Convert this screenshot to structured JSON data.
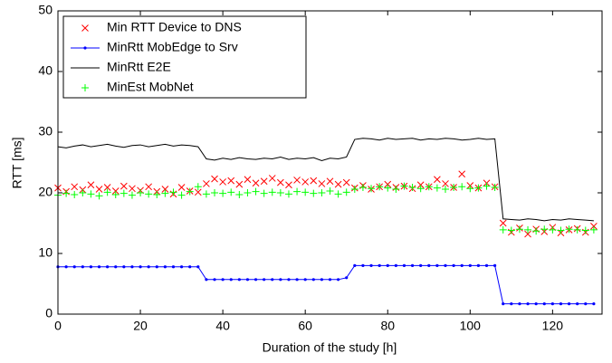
{
  "chart_data": {
    "type": "line",
    "xlabel": "Duration of the study [h]",
    "ylabel": "RTT [ms]",
    "x": [
      0,
      2,
      4,
      6,
      8,
      10,
      12,
      14,
      16,
      18,
      20,
      22,
      24,
      26,
      28,
      30,
      32,
      34,
      36,
      38,
      40,
      42,
      44,
      46,
      48,
      50,
      52,
      54,
      56,
      58,
      60,
      62,
      64,
      66,
      68,
      70,
      72,
      74,
      76,
      78,
      80,
      82,
      84,
      86,
      88,
      90,
      92,
      94,
      96,
      98,
      100,
      102,
      104,
      106,
      108,
      110,
      112,
      114,
      116,
      118,
      120,
      122,
      124,
      126,
      128,
      130
    ],
    "xlim": [
      0,
      132
    ],
    "xticks": [
      0,
      20,
      40,
      60,
      80,
      100,
      120
    ],
    "ylim": [
      0,
      50
    ],
    "yticks": [
      0,
      10,
      20,
      30,
      40,
      50
    ],
    "legend": "upper left",
    "series": [
      {
        "name": "Min RTT Device to DNS",
        "color": "#ff0000",
        "marker": "x",
        "line": false,
        "values": [
          20.8,
          20.2,
          21.0,
          20.5,
          21.3,
          20.6,
          20.9,
          20.3,
          21.1,
          20.7,
          20.4,
          21.0,
          20.2,
          20.6,
          19.8,
          20.9,
          20.3,
          20.1,
          21.5,
          22.3,
          21.8,
          22.0,
          21.4,
          22.2,
          21.6,
          21.9,
          22.4,
          21.7,
          21.3,
          22.1,
          21.8,
          22.0,
          21.5,
          21.9,
          21.4,
          21.7,
          20.8,
          21.2,
          20.6,
          21.0,
          21.4,
          20.9,
          21.1,
          20.7,
          21.3,
          21.0,
          22.2,
          21.5,
          20.9,
          23.1,
          21.2,
          20.8,
          21.6,
          21.0,
          15.0,
          13.5,
          14.2,
          13.2,
          14.0,
          13.6,
          14.3,
          13.4,
          13.9,
          14.1,
          13.5,
          14.5
        ]
      },
      {
        "name": "MinRtt MobEdge to Srv",
        "color": "#0000ff",
        "marker": ".",
        "line": true,
        "values": [
          7.8,
          7.8,
          7.8,
          7.8,
          7.8,
          7.8,
          7.8,
          7.8,
          7.8,
          7.8,
          7.8,
          7.8,
          7.8,
          7.8,
          7.8,
          7.8,
          7.8,
          7.8,
          5.7,
          5.7,
          5.7,
          5.7,
          5.7,
          5.7,
          5.7,
          5.7,
          5.7,
          5.7,
          5.7,
          5.7,
          5.7,
          5.7,
          5.7,
          5.7,
          5.7,
          6.0,
          8.0,
          8.0,
          8.0,
          8.0,
          8.0,
          8.0,
          8.0,
          8.0,
          8.0,
          8.0,
          8.0,
          8.0,
          8.0,
          8.0,
          8.0,
          8.0,
          8.0,
          8.0,
          1.7,
          1.7,
          1.7,
          1.7,
          1.7,
          1.7,
          1.7,
          1.7,
          1.7,
          1.7,
          1.7,
          1.7
        ]
      },
      {
        "name": "MinRtt E2E",
        "color": "#000000",
        "marker": null,
        "line": true,
        "values": [
          27.6,
          27.4,
          27.7,
          27.9,
          27.6,
          27.8,
          28.0,
          27.7,
          27.5,
          27.8,
          27.9,
          27.6,
          27.8,
          28.0,
          27.7,
          27.9,
          27.8,
          27.6,
          25.6,
          25.4,
          25.7,
          25.5,
          25.8,
          25.6,
          25.5,
          25.7,
          25.6,
          25.9,
          25.5,
          25.7,
          25.6,
          25.8,
          25.3,
          25.7,
          25.6,
          25.9,
          28.8,
          29.0,
          28.9,
          28.7,
          29.0,
          28.8,
          28.9,
          29.0,
          28.7,
          28.9,
          28.8,
          29.0,
          28.9,
          28.7,
          28.8,
          29.0,
          28.8,
          28.9,
          15.7,
          15.6,
          15.5,
          15.7,
          15.6,
          15.4,
          15.6,
          15.5,
          15.7,
          15.6,
          15.5,
          15.4
        ]
      },
      {
        "name": "MinEst MobNet",
        "color": "#00ff00",
        "marker": "+",
        "line": false,
        "values": [
          19.6,
          19.9,
          19.7,
          20.0,
          19.8,
          19.5,
          20.1,
          19.7,
          19.9,
          19.6,
          20.0,
          19.8,
          19.7,
          19.9,
          20.1,
          19.6,
          20.2,
          21.0,
          19.8,
          20.0,
          19.9,
          20.1,
          19.7,
          20.0,
          20.2,
          19.9,
          20.1,
          20.0,
          19.8,
          20.2,
          20.1,
          19.9,
          20.0,
          20.3,
          19.8,
          20.1,
          20.6,
          20.9,
          20.7,
          21.0,
          20.8,
          20.6,
          21.1,
          20.9,
          20.7,
          21.0,
          20.8,
          20.6,
          20.9,
          21.0,
          20.7,
          20.8,
          21.1,
          20.9,
          13.9,
          13.8,
          14.0,
          13.9,
          13.7,
          14.0,
          13.9,
          13.8,
          14.0,
          13.9,
          13.8,
          13.9
        ]
      }
    ]
  }
}
